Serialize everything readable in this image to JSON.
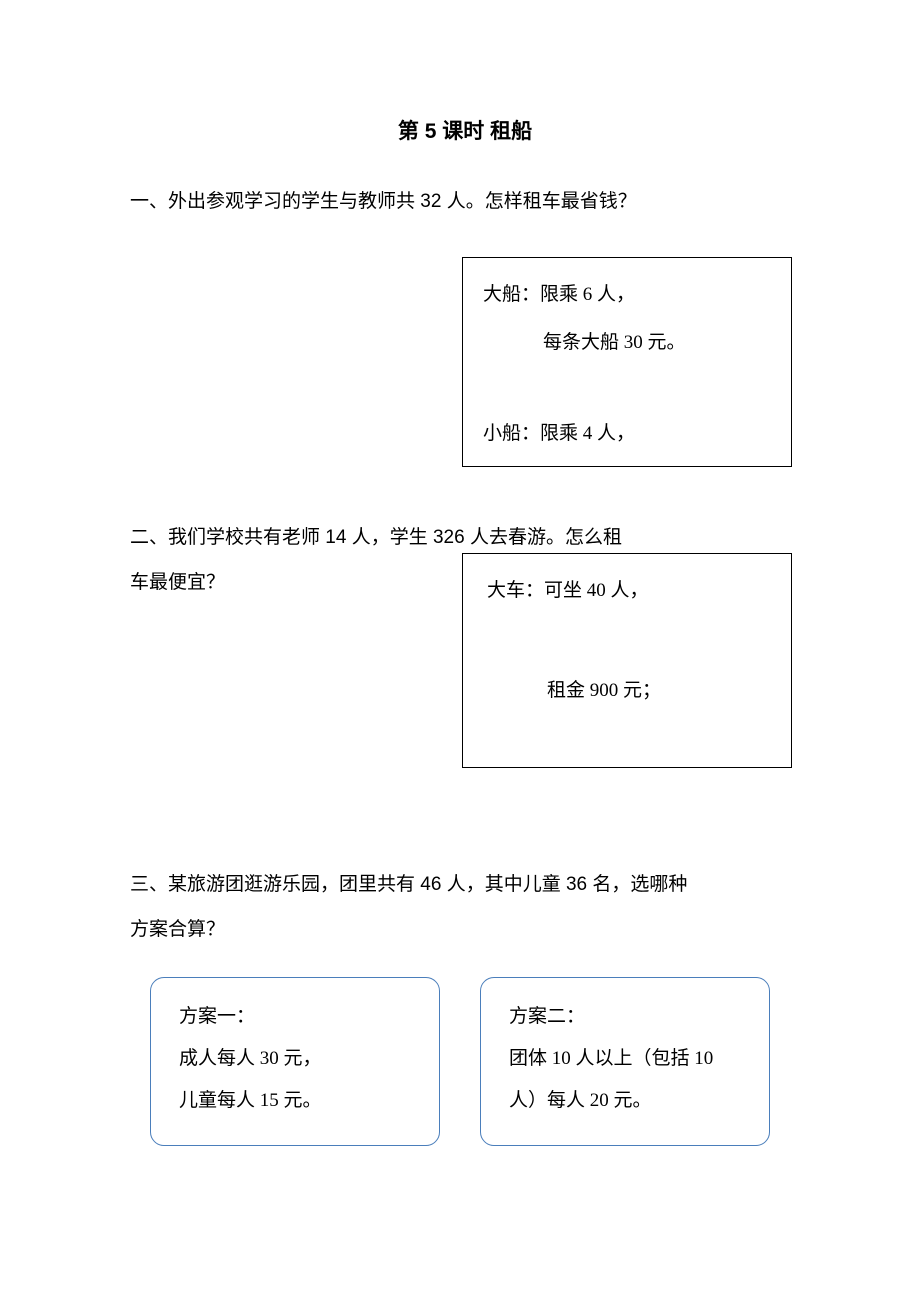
{
  "title": "第 5 课时  租船",
  "q1": {
    "prompt": "一、外出参观学习的学生与教师共 32 人。怎样租车最省钱？",
    "box": {
      "line1": "大船：限乘 6 人，",
      "line2": "每条大船 30 元。",
      "line3": "小船：限乘 4 人，"
    }
  },
  "q2": {
    "prompt_l1": "二、我们学校共有老师 14 人，学生 326 人去春游。怎么租",
    "prompt_l2": "车最便宜？",
    "box": {
      "line1": "大车：可坐 40 人，",
      "line2": "租金 900 元；"
    }
  },
  "q3": {
    "prompt_l1": "三、某旅游团逛游乐园，团里共有 46 人，其中儿童 36 名，选哪种",
    "prompt_l2": "方案合算？",
    "plan1": {
      "title": "方案一：",
      "l1": "成人每人 30 元，",
      "l2": "儿童每人 15 元。"
    },
    "plan2": {
      "title": "方案二：",
      "l1": "团体 10 人以上（包括 10",
      "l2": "人）每人 20 元。"
    }
  },
  "colors": {
    "text": "#000000",
    "background": "#ffffff",
    "plan_border": "#4a7ebb"
  },
  "fonts": {
    "title_family": "SimHei",
    "body_family": "SimSun",
    "question_family": "SimHei",
    "title_size_pt": 16,
    "body_size_pt": 14
  }
}
